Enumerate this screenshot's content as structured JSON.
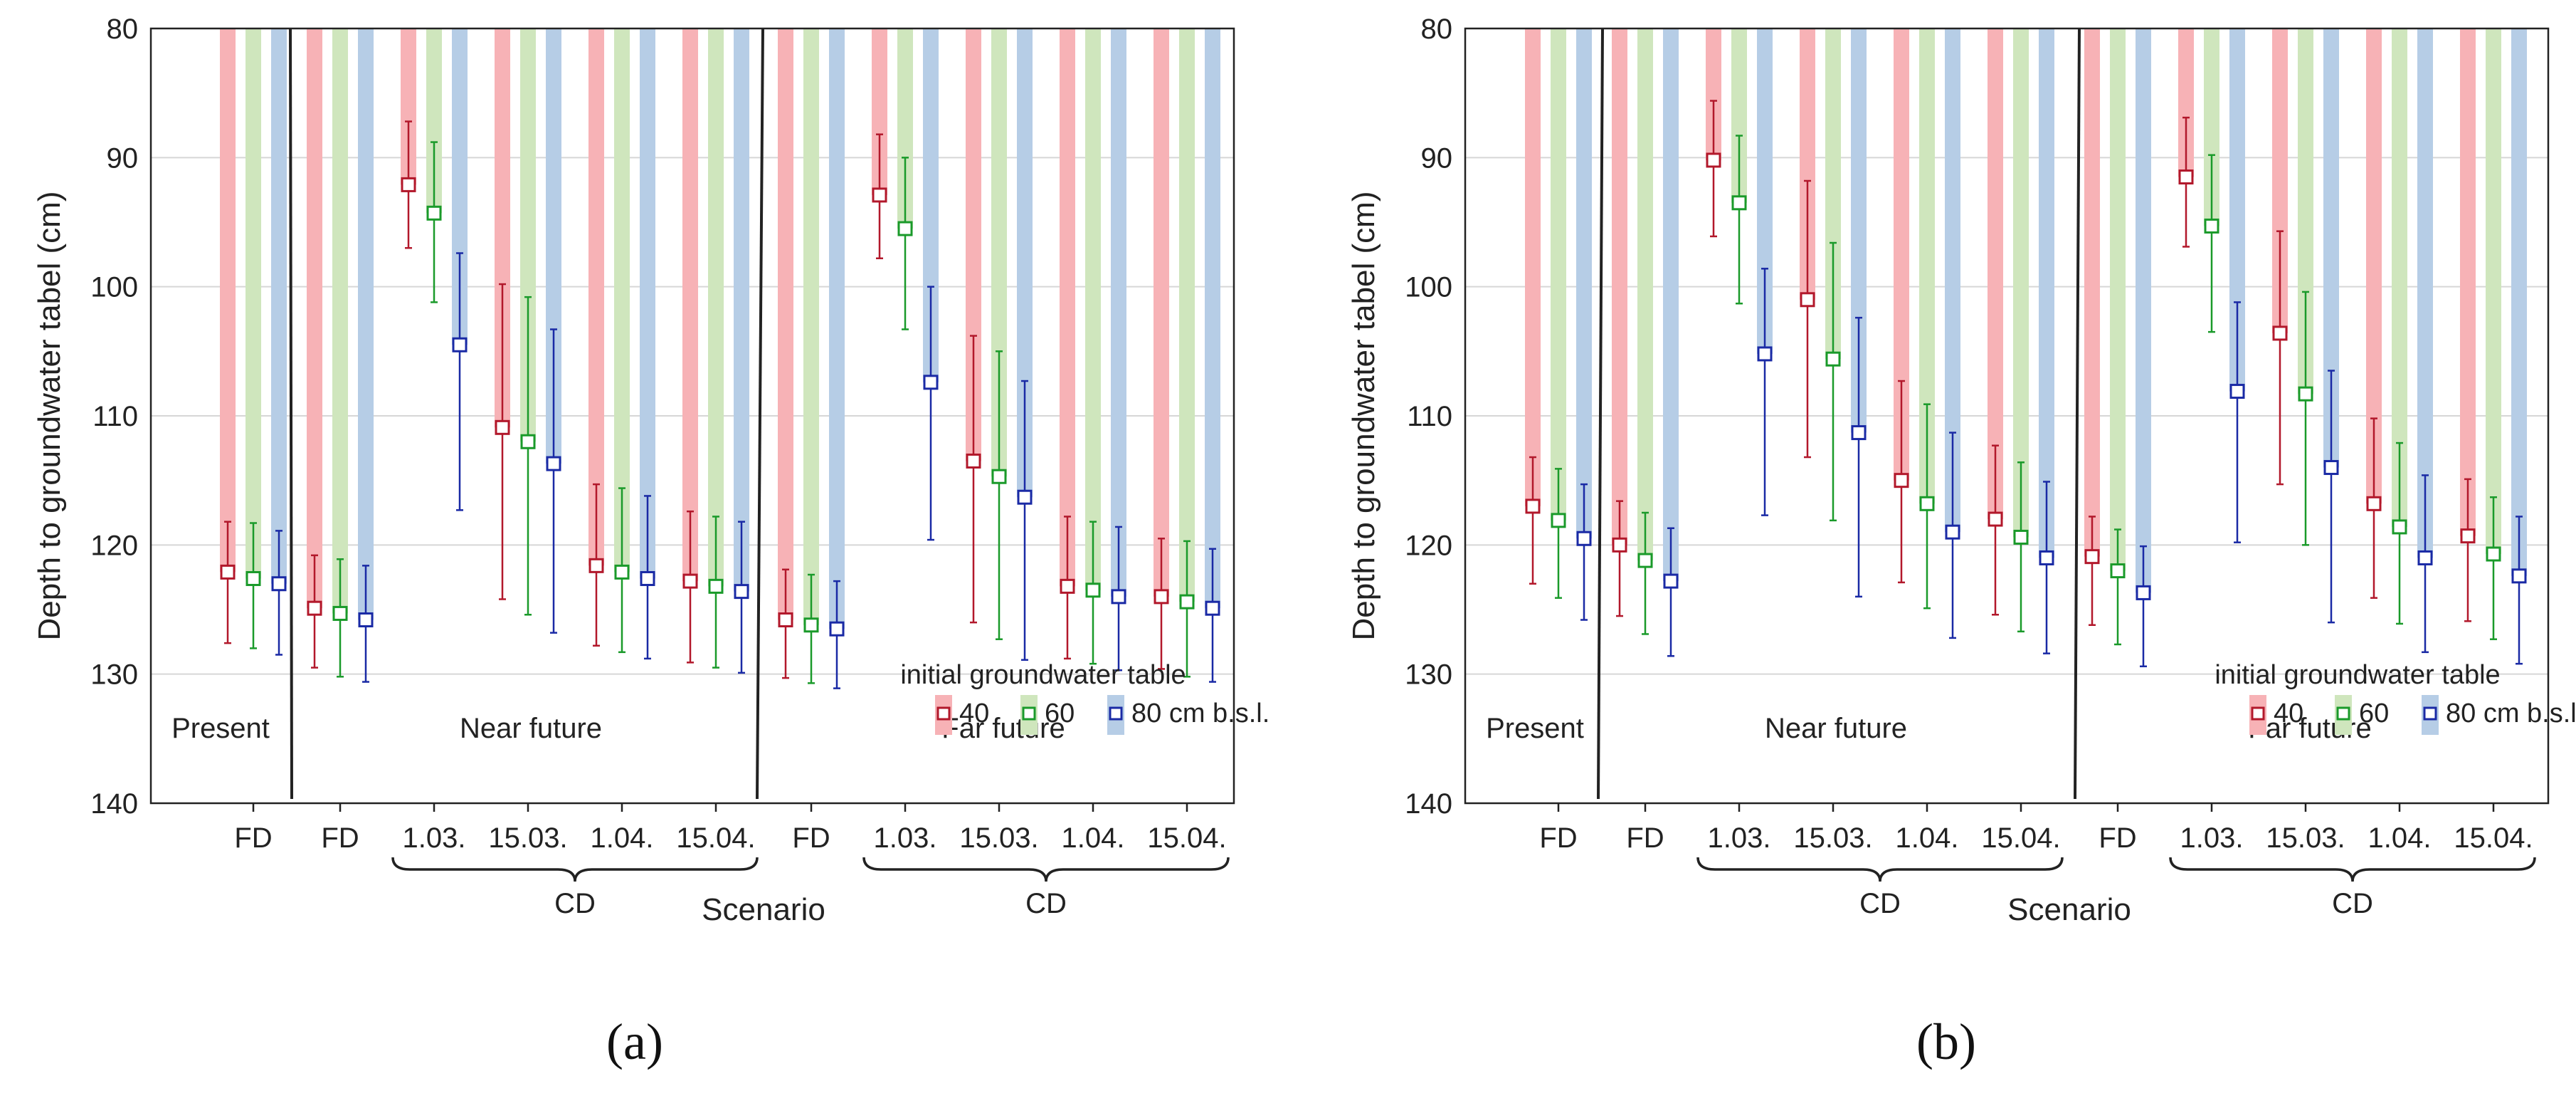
{
  "figure": {
    "panels": [
      "(a)",
      "(b)"
    ]
  },
  "colors": {
    "fill": {
      "40": "#f7b2b6",
      "60": "#cfe6bd",
      "80": "#b6cde6"
    },
    "marker": {
      "40": "#b2182b",
      "60": "#1a9a2a",
      "80": "#1a2aa5"
    },
    "grid": "#d6d6d6",
    "axis": "#222222"
  },
  "chart_data": [
    {
      "type": "bar",
      "panel": "(a)",
      "ylabel": "Depth to groundwater tabel (cm)",
      "xlabel": "Scenario",
      "ylim": [
        80,
        140
      ],
      "y_inverted": true,
      "yticks": [
        80,
        90,
        100,
        110,
        120,
        130,
        140
      ],
      "grid": true,
      "categories": [
        "FD",
        "FD",
        "1.03.",
        "15.03.",
        "1.04.",
        "15.04.",
        "FD",
        "1.03.",
        "15.03.",
        "1.04.",
        "15.04."
      ],
      "groups": [
        {
          "label": "Present",
          "from": 0,
          "to": 0
        },
        {
          "label": "Near future",
          "from": 1,
          "to": 5
        },
        {
          "label": "Far future",
          "from": 6,
          "to": 10
        }
      ],
      "braces": [
        {
          "label": "CD",
          "from": 2,
          "to": 5
        },
        {
          "label": "CD",
          "from": 7,
          "to": 10
        }
      ],
      "legend": {
        "title": "initial groundwater table",
        "labels": [
          "40",
          "60",
          "80 cm b.s.l."
        ],
        "position": "bottom-right"
      },
      "series": [
        {
          "name": "40",
          "values": [
            122.1,
            124.9,
            92.1,
            110.9,
            121.6,
            122.8,
            125.8,
            92.9,
            113.5,
            123.2,
            124.0
          ],
          "lower": [
            118.2,
            120.8,
            87.2,
            99.8,
            115.3,
            117.4,
            121.9,
            88.2,
            103.8,
            117.8,
            119.5
          ],
          "upper": [
            127.6,
            129.5,
            97.0,
            124.2,
            127.8,
            129.1,
            130.3,
            97.8,
            126.0,
            128.8,
            129.6
          ]
        },
        {
          "name": "60",
          "values": [
            122.6,
            125.3,
            94.3,
            112.0,
            122.1,
            123.2,
            126.2,
            95.5,
            114.7,
            123.5,
            124.4
          ],
          "lower": [
            118.3,
            121.1,
            88.8,
            100.8,
            115.6,
            117.8,
            122.3,
            90.0,
            105.0,
            118.2,
            119.7
          ],
          "upper": [
            128.0,
            130.2,
            101.2,
            125.4,
            128.3,
            129.5,
            130.7,
            103.3,
            127.3,
            129.2,
            130.2
          ]
        },
        {
          "name": "80",
          "values": [
            123.0,
            125.8,
            104.5,
            113.7,
            122.6,
            123.6,
            126.5,
            107.4,
            116.3,
            124.0,
            124.9
          ],
          "lower": [
            118.9,
            121.6,
            97.4,
            103.3,
            116.2,
            118.2,
            122.8,
            100.0,
            107.3,
            118.6,
            120.3
          ],
          "upper": [
            128.5,
            130.6,
            117.3,
            126.8,
            128.8,
            129.9,
            131.1,
            119.6,
            128.9,
            129.7,
            130.6
          ]
        }
      ]
    },
    {
      "type": "bar",
      "panel": "(b)",
      "ylabel": "Depth to groundwater tabel (cm)",
      "xlabel": "Scenario",
      "ylim": [
        80,
        140
      ],
      "y_inverted": true,
      "yticks": [
        80,
        90,
        100,
        110,
        120,
        130,
        140
      ],
      "grid": true,
      "categories": [
        "FD",
        "FD",
        "1.03.",
        "15.03.",
        "1.04.",
        "15.04.",
        "FD",
        "1.03.",
        "15.03.",
        "1.04.",
        "15.04."
      ],
      "groups": [
        {
          "label": "Present",
          "from": 0,
          "to": 0
        },
        {
          "label": "Near future",
          "from": 1,
          "to": 5
        },
        {
          "label": "Far future",
          "from": 6,
          "to": 10
        }
      ],
      "braces": [
        {
          "label": "CD",
          "from": 2,
          "to": 5
        },
        {
          "label": "CD",
          "from": 7,
          "to": 10
        }
      ],
      "legend": {
        "title": "initial groundwater table",
        "labels": [
          "40",
          "60",
          "80 cm b.s.l."
        ],
        "position": "bottom-right"
      },
      "series": [
        {
          "name": "40",
          "values": [
            117.0,
            120.0,
            90.2,
            101.0,
            115.0,
            118.0,
            120.9,
            91.5,
            103.6,
            116.8,
            119.3
          ],
          "lower": [
            113.2,
            116.6,
            85.6,
            91.8,
            107.3,
            112.3,
            117.8,
            86.9,
            95.7,
            110.2,
            114.9
          ],
          "upper": [
            123.0,
            125.5,
            96.1,
            113.2,
            122.9,
            125.4,
            126.2,
            96.9,
            115.3,
            124.1,
            125.9
          ]
        },
        {
          "name": "60",
          "values": [
            118.1,
            121.2,
            93.5,
            105.6,
            116.8,
            119.4,
            122.0,
            95.3,
            108.3,
            118.6,
            120.7
          ],
          "lower": [
            114.1,
            117.5,
            88.3,
            96.6,
            109.1,
            113.6,
            118.8,
            89.8,
            100.4,
            112.1,
            116.3
          ],
          "upper": [
            124.1,
            126.9,
            101.3,
            118.1,
            124.9,
            126.7,
            127.7,
            103.5,
            120.0,
            126.1,
            127.3
          ]
        },
        {
          "name": "80",
          "values": [
            119.5,
            122.8,
            105.2,
            111.3,
            119.0,
            121.0,
            123.7,
            108.1,
            114.0,
            121.0,
            122.4
          ],
          "lower": [
            115.3,
            118.7,
            98.6,
            102.4,
            111.3,
            115.1,
            120.1,
            101.2,
            106.5,
            114.6,
            117.8
          ],
          "upper": [
            125.8,
            128.6,
            117.7,
            124.0,
            127.2,
            128.4,
            129.4,
            119.8,
            126.0,
            128.3,
            129.2
          ]
        }
      ]
    }
  ]
}
